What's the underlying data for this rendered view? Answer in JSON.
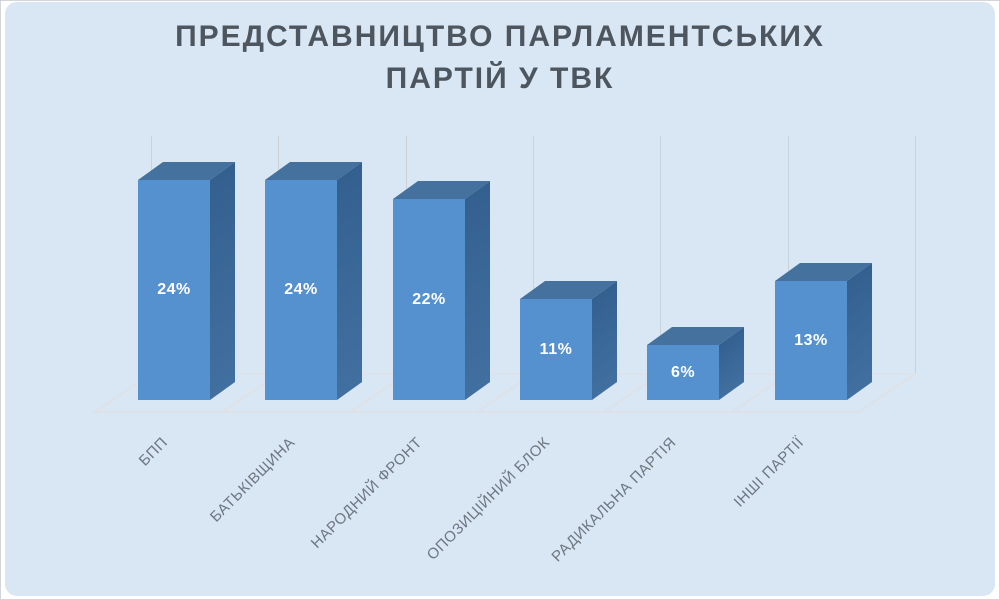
{
  "card": {
    "background_color": "#d9e6f3",
    "frame_color": "#ffffff",
    "outer_edge_color": "#d2d6db"
  },
  "title": {
    "line1": "ПРЕДСТАВНИЦТВО ПАРЛАМЕНТСЬКИХ",
    "line2": "ПАРТІЙ У ТВК",
    "color": "#4d565f"
  },
  "chart_data": {
    "type": "bar",
    "style": "3d-column",
    "title": "ПРЕДСТАВНИЦТВО ПАРЛАМЕНТСЬКИХ ПАРТІЙ У ТВК",
    "categories": [
      "БПП",
      "БАТЬКІВЩИНА",
      "НАРОДНИЙ ФРОНТ",
      "ОПОЗИЦІЙНИЙ БЛОК",
      "РАДИКАЛЬНА ПАРТІЯ",
      "ІНШІ ПАРТІЇ"
    ],
    "values": [
      24,
      24,
      22,
      11,
      6,
      13
    ],
    "data_labels": [
      "24%",
      "24%",
      "22%",
      "11%",
      "6%",
      "13%"
    ],
    "unit": "%",
    "xlabel": "",
    "ylabel": "",
    "value_axis_visible": false,
    "legend_position": "none",
    "grid": "vertical-back-wall",
    "category_label_rotation_deg": -45,
    "colors": {
      "bar_front": "#5591ce",
      "bar_top": "#44719d",
      "bar_side_dark": "#33608f",
      "bar_side_light": "#4170a0",
      "data_label": "#ffffff",
      "category_label": "#6e7781",
      "gridline": "#ccd2da",
      "floor_line": "#dde1e8"
    }
  }
}
